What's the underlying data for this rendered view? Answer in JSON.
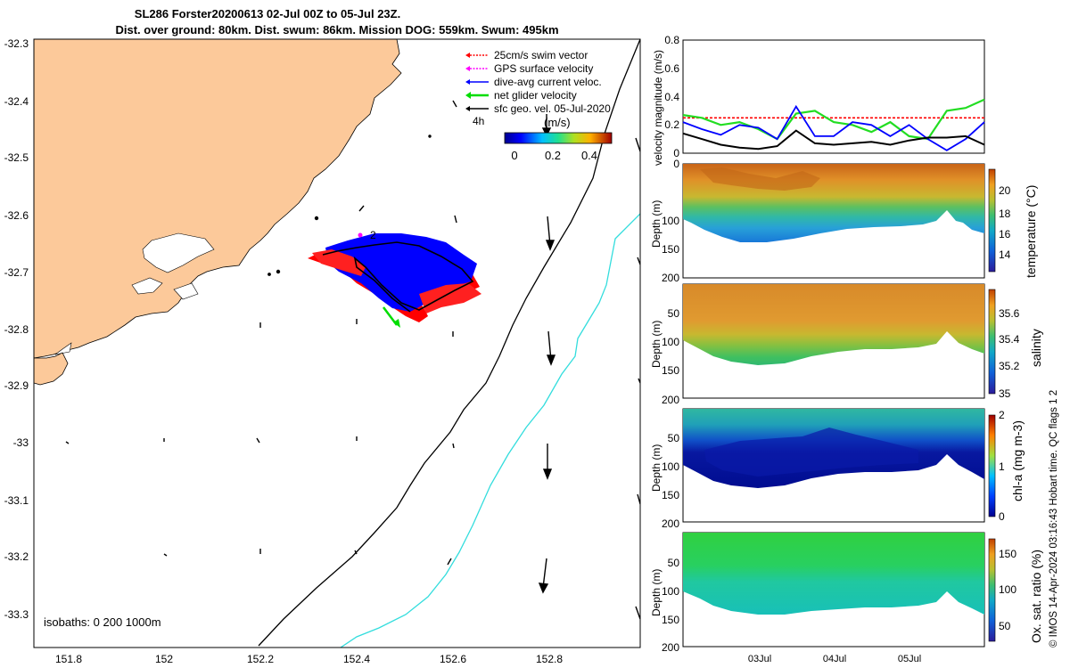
{
  "title": {
    "line1": "SL286 Forster20200613 02-Jul 00Z to 05-Jul 23Z.",
    "line2": "Dist. over ground: 80km. Dist. swum: 86km. Mission DOG: 559km. Swum: 495km"
  },
  "map": {
    "lat_ticks": [
      "-32.3",
      "-32.4",
      "-32.5",
      "-32.6",
      "-32.7",
      "-32.8",
      "-32.9",
      "-33",
      "-33.1",
      "-33.2",
      "-33.3"
    ],
    "lon_ticks": [
      "151.8",
      "152",
      "152.2",
      "152.4",
      "152.6",
      "152.8"
    ],
    "legend": [
      {
        "label": "25cm/s swim vector",
        "color": "#ff0000",
        "style": "dotted"
      },
      {
        "label": "GPS surface velocity",
        "color": "#ff00ff",
        "style": "dotted"
      },
      {
        "label": "dive-avg current veloc.",
        "color": "#0000ff",
        "style": "solid"
      },
      {
        "label": "net glider velocity",
        "color": "#00dd00",
        "style": "solid"
      },
      {
        "label": "sfc geo. vel. 05-Jul-2020",
        "color": "#000000",
        "style": "solid"
      }
    ],
    "vector_scale_label": "4h",
    "colorbar_label": "(m/s)",
    "colorbar_ticks": [
      "0",
      "0.2",
      "0.4"
    ],
    "isobath_note": "isobaths: 0   200  1000m",
    "start_marker": "2",
    "land_color": "#fcc99a",
    "isobath_200_color": "#000000",
    "isobath_1000_color": "#33dddd"
  },
  "velocity": {
    "ylabel": "velocity magnitude (m/s)",
    "yticks": [
      "0",
      "0.2",
      "0.4",
      "0.6",
      "0.8"
    ],
    "ylim": [
      0,
      0.8
    ]
  },
  "sections": [
    {
      "name": "temperature",
      "cblabel": "temperature (°C)",
      "cbticks": [
        "14",
        "16",
        "18",
        "20"
      ],
      "ylabel": "Depth (m)"
    },
    {
      "name": "salinity",
      "cblabel": "salinity",
      "cbticks": [
        "35",
        "35.2",
        "35.4",
        "35.6"
      ],
      "ylabel": "Depth (m)"
    },
    {
      "name": "chla",
      "cblabel": "chl-a (mg m-3)",
      "cbticks": [
        "0",
        "1",
        "2"
      ],
      "ylabel": "Depth (m)"
    },
    {
      "name": "oxygen",
      "cblabel": "Ox. sat. ratio (%)",
      "cbticks": [
        "50",
        "100",
        "150"
      ],
      "ylabel": "Depth (m)"
    }
  ],
  "depth_ticks": [
    "0",
    "50",
    "100",
    "150",
    "200"
  ],
  "time_ticks": [
    "03Jul",
    "04Jul",
    "05Jul"
  ],
  "credit": "© IMOS 14-Apr-2024 03:16:43 Hobart time. QC flags 1  2",
  "chart_data": [
    {
      "type": "line",
      "ylabel": "velocity magnitude (m/s)",
      "ylim": [
        0,
        0.8
      ],
      "x": [
        2.0,
        2.25,
        2.5,
        2.75,
        3.0,
        3.25,
        3.5,
        3.75,
        4.0,
        4.25,
        4.5,
        4.75,
        5.0,
        5.25,
        5.5,
        5.75,
        6.0
      ],
      "series": [
        {
          "name": "25cm/s swim vector",
          "values": [
            0.25,
            0.25,
            0.25,
            0.25,
            0.25,
            0.25,
            0.25,
            0.25,
            0.25,
            0.25,
            0.25,
            0.25,
            0.25,
            0.25,
            0.25,
            0.25,
            0.25
          ]
        },
        {
          "name": "net glider velocity",
          "values": [
            0.27,
            0.25,
            0.2,
            0.22,
            0.17,
            0.1,
            0.28,
            0.3,
            0.22,
            0.2,
            0.15,
            0.22,
            0.12,
            0.1,
            0.3,
            0.32,
            0.38
          ]
        },
        {
          "name": "dive-avg current veloc.",
          "values": [
            0.22,
            0.17,
            0.13,
            0.2,
            0.18,
            0.1,
            0.33,
            0.12,
            0.12,
            0.22,
            0.2,
            0.12,
            0.2,
            0.1,
            0.02,
            0.1,
            0.22
          ]
        },
        {
          "name": "sfc geo. vel. 05-Jul-2020",
          "values": [
            0.14,
            0.1,
            0.06,
            0.04,
            0.03,
            0.05,
            0.16,
            0.07,
            0.06,
            0.07,
            0.08,
            0.06,
            0.09,
            0.11,
            0.11,
            0.12,
            0.06
          ]
        }
      ]
    }
  ]
}
